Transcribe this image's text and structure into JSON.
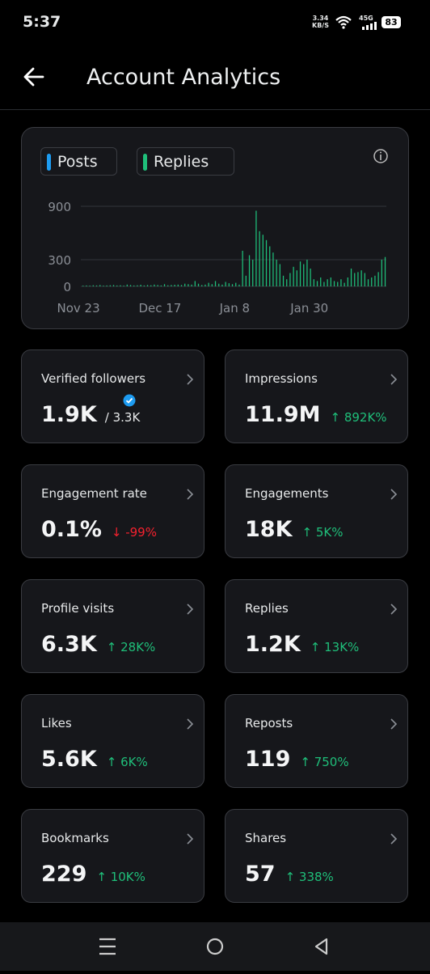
{
  "status_bar": {
    "time": "5:37",
    "speed_value": "3.34",
    "speed_unit": "KB/S",
    "network": "45G",
    "battery": "83"
  },
  "header": {
    "title": "Account Analytics"
  },
  "chart_data": {
    "type": "bar",
    "categories": [
      "Nov 23",
      null,
      null,
      null,
      null,
      null,
      null,
      null,
      null,
      null,
      null,
      null,
      null,
      null,
      null,
      null,
      null,
      null,
      null,
      null,
      null,
      null,
      null,
      null,
      "Dec 17",
      null,
      null,
      null,
      null,
      null,
      null,
      null,
      null,
      null,
      null,
      null,
      null,
      null,
      null,
      null,
      null,
      null,
      null,
      null,
      null,
      null,
      "Jan 8",
      null,
      null,
      null,
      null,
      null,
      null,
      null,
      null,
      null,
      null,
      null,
      null,
      null,
      null,
      null,
      null,
      null,
      null,
      null,
      null,
      null,
      "Jan 30",
      null,
      null,
      null,
      null,
      null,
      null,
      null,
      null,
      null,
      null,
      null,
      null,
      null,
      null,
      null,
      null,
      null,
      null,
      null,
      null,
      null
    ],
    "series": [
      {
        "name": "Posts",
        "color": "#1d9bf0",
        "values": [
          0,
          0,
          0,
          0,
          0,
          0,
          0,
          0,
          0,
          0,
          0,
          0,
          0,
          0,
          0,
          0,
          0,
          0,
          0,
          0,
          0,
          0,
          0,
          0,
          0,
          0,
          0,
          0,
          0,
          0,
          0,
          0,
          0,
          0,
          0,
          0,
          0,
          0,
          0,
          0,
          0,
          0,
          0,
          0,
          0,
          0,
          0,
          0,
          0,
          0,
          0,
          0,
          0,
          0,
          0,
          0,
          0,
          0,
          0,
          0,
          0,
          0,
          0,
          0,
          0,
          0,
          0,
          0,
          0,
          0,
          0,
          0,
          0,
          0,
          0,
          0,
          0,
          0,
          0,
          0,
          0,
          0,
          0,
          0,
          0,
          0,
          0,
          0,
          0,
          0
        ]
      },
      {
        "name": "Replies",
        "color": "#1fbf7a",
        "values": [
          8,
          10,
          8,
          12,
          10,
          15,
          8,
          10,
          12,
          15,
          10,
          12,
          8,
          20,
          15,
          10,
          12,
          18,
          10,
          15,
          12,
          20,
          15,
          10,
          25,
          12,
          15,
          18,
          20,
          15,
          30,
          25,
          20,
          60,
          30,
          15,
          20,
          40,
          25,
          60,
          30,
          20,
          50,
          35,
          25,
          40,
          20,
          400,
          120,
          350,
          300,
          850,
          620,
          580,
          520,
          450,
          380,
          300,
          250,
          120,
          80,
          150,
          220,
          180,
          280,
          250,
          300,
          200,
          80,
          60,
          100,
          50,
          80,
          100,
          60,
          50,
          80,
          40,
          100,
          200,
          150,
          160,
          180,
          150,
          80,
          100,
          120,
          160,
          300,
          330
        ]
      }
    ],
    "ylim": [
      0,
      900
    ],
    "yticks": [
      0,
      300,
      900
    ],
    "grid": true
  },
  "metrics": [
    {
      "label": "Verified followers",
      "value": "1.9K",
      "secondary": "/ 3.3K",
      "verified": true
    },
    {
      "label": "Impressions",
      "value": "11.9M",
      "change": "↑ 892K%",
      "trend": "up"
    },
    {
      "label": "Engagement rate",
      "value": "0.1%",
      "change": "↓ -99%",
      "trend": "down"
    },
    {
      "label": "Engagements",
      "value": "18K",
      "change": "↑ 5K%",
      "trend": "up"
    },
    {
      "label": "Profile visits",
      "value": "6.3K",
      "change": "↑ 28K%",
      "trend": "up"
    },
    {
      "label": "Replies",
      "value": "1.2K",
      "change": "↑ 13K%",
      "trend": "up"
    },
    {
      "label": "Likes",
      "value": "5.6K",
      "change": "↑ 6K%",
      "trend": "up"
    },
    {
      "label": "Reposts",
      "value": "119",
      "change": "↑ 750%",
      "trend": "up"
    },
    {
      "label": "Bookmarks",
      "value": "229",
      "change": "↑ 10K%",
      "trend": "up"
    },
    {
      "label": "Shares",
      "value": "57",
      "change": "↑ 338%",
      "trend": "up"
    }
  ]
}
